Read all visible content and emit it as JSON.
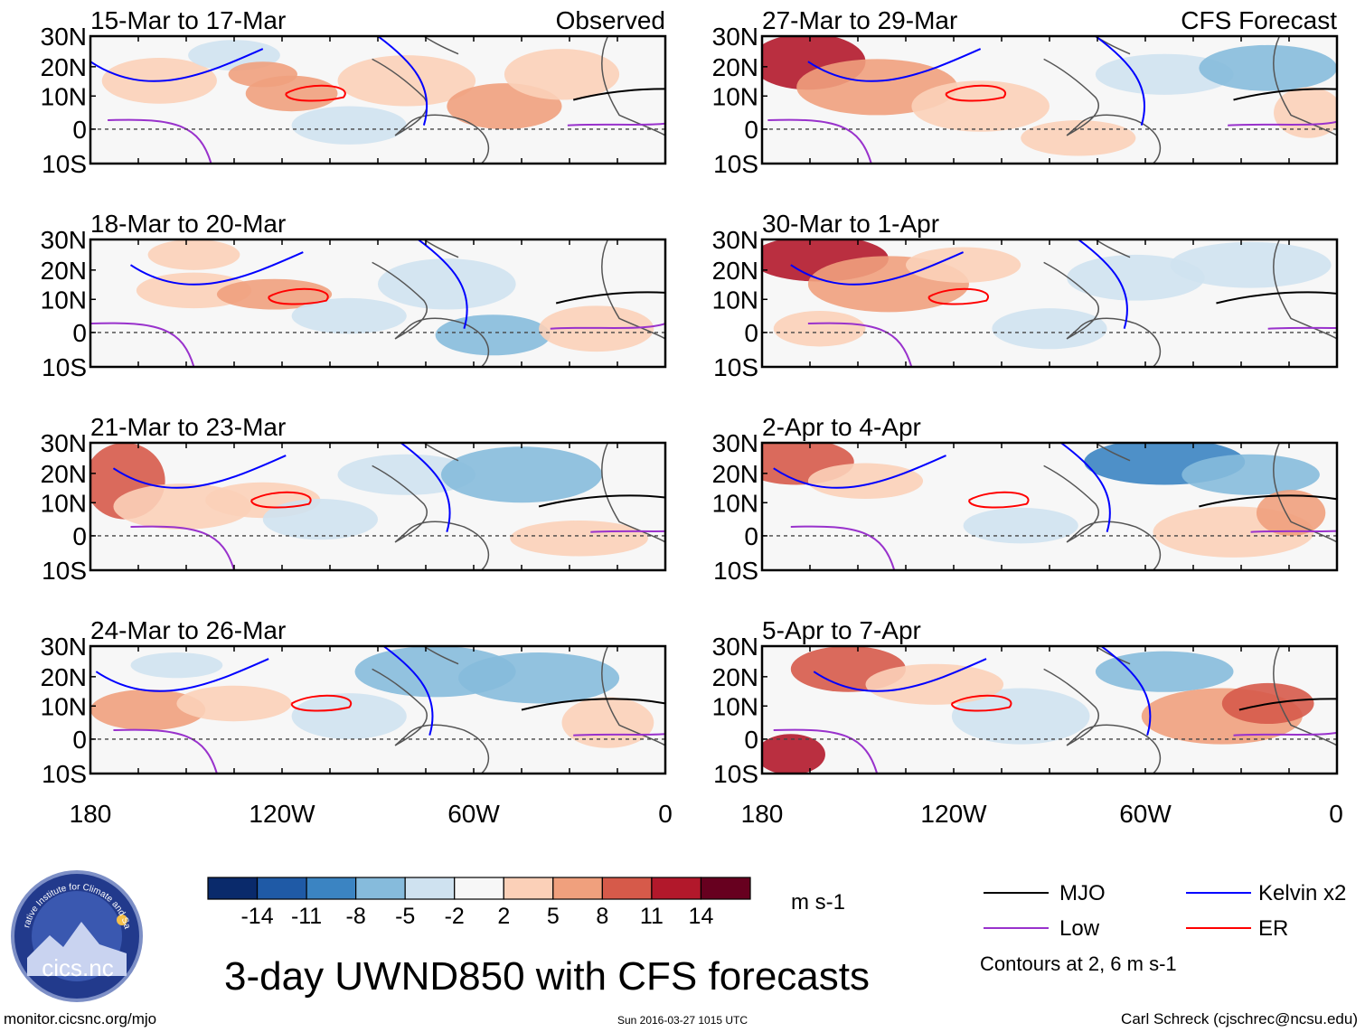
{
  "panels": [
    {
      "period": "15-Mar to 17-Mar",
      "tag": "Observed"
    },
    {
      "period": "18-Mar to 20-Mar",
      "tag": ""
    },
    {
      "period": "21-Mar to 23-Mar",
      "tag": ""
    },
    {
      "period": "24-Mar to 26-Mar",
      "tag": ""
    },
    {
      "period": "27-Mar to 29-Mar",
      "tag": "CFS Forecast"
    },
    {
      "period": "30-Mar to 1-Apr",
      "tag": ""
    },
    {
      "period": "2-Apr to 4-Apr",
      "tag": ""
    },
    {
      "period": "5-Apr to 7-Apr",
      "tag": ""
    }
  ],
  "lat_labels": [
    "30N",
    "20N",
    "10N",
    "0",
    "10S"
  ],
  "lon_labels": [
    "180",
    "120W",
    "60W",
    "0"
  ],
  "colorbar": {
    "ticks": [
      "-14",
      "-11",
      "-8",
      "-5",
      "-2",
      "2",
      "5",
      "8",
      "11",
      "14"
    ],
    "colors": [
      "#0a2a6b",
      "#1f5aa6",
      "#3b84c2",
      "#86bbdc",
      "#cfe2f0",
      "#f7f7f7",
      "#fbd0b8",
      "#f0a07d",
      "#d65a4a",
      "#b2182b",
      "#67001f"
    ],
    "units": "m s-1"
  },
  "legend": {
    "items": [
      {
        "label": "MJO",
        "color": "#000000"
      },
      {
        "label": "Kelvin x2",
        "color": "#0000ff"
      },
      {
        "label": "Low",
        "color": "#9932cc"
      },
      {
        "label": "ER",
        "color": "#ff0000"
      }
    ],
    "note": "Contours at 2, 6 m s-1"
  },
  "logo_text": "Cooperative Institute for Climate and Satellites",
  "logo_label": "cics.nc",
  "main_title": "3-day UWND850 with CFS forecasts",
  "footer": {
    "url": "monitor.cicsnc.org/mjo",
    "timestamp": "Sun 2016-03-27 1015 UTC",
    "credit": "Carl Schreck (cjschrec@ncsu.edu)"
  }
}
